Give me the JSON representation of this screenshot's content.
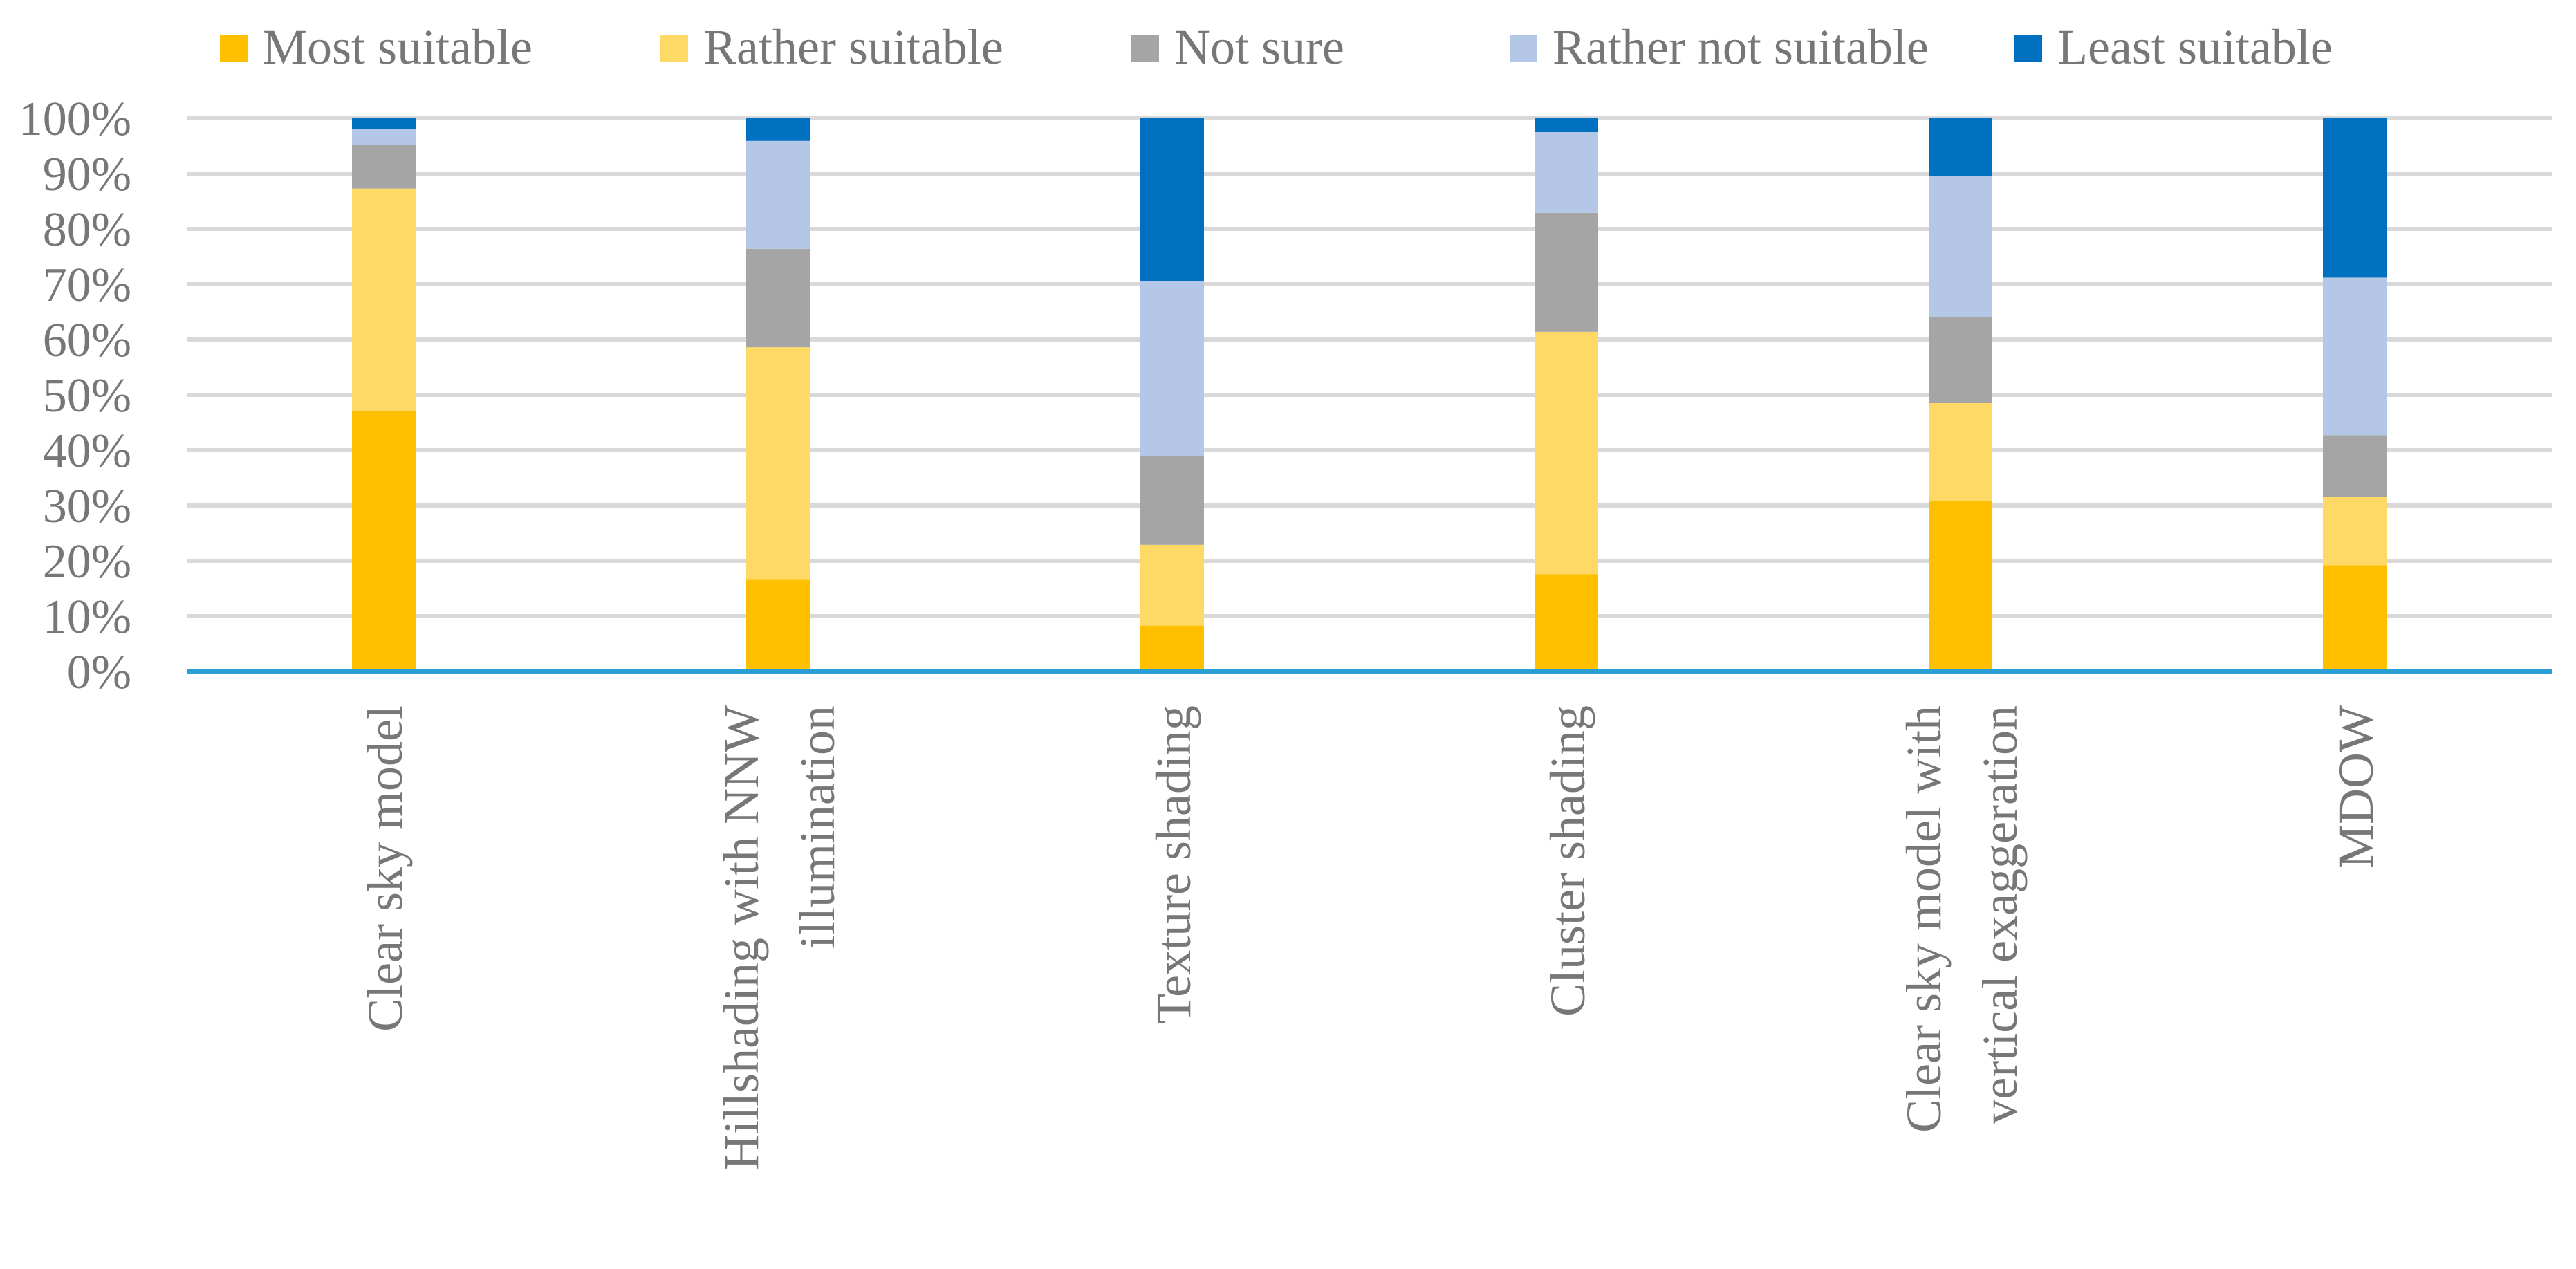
{
  "chart_data": {
    "type": "bar",
    "stacked": true,
    "percent": true,
    "title": "",
    "xlabel": "",
    "ylabel": "",
    "ylim": [
      0,
      100
    ],
    "yticks": [
      "0%",
      "10%",
      "20%",
      "30%",
      "40%",
      "50%",
      "60%",
      "70%",
      "80%",
      "90%",
      "100%"
    ],
    "grid": true,
    "legend_position": "top",
    "categories": [
      [
        "Clear sky model"
      ],
      [
        "Hillshading with NNW",
        "illumination"
      ],
      [
        "Texture shading"
      ],
      [
        "Cluster shading"
      ],
      [
        "Clear sky model with",
        "vertical exaggeration"
      ],
      [
        "MDOW"
      ]
    ],
    "series": [
      {
        "name": "Most suitable",
        "color": "#FFC000",
        "values": [
          47.1,
          16.7,
          8.3,
          17.6,
          30.8,
          19.2
        ]
      },
      {
        "name": "Rather suitable",
        "color": "#FFD966",
        "values": [
          40.2,
          41.9,
          14.6,
          43.8,
          17.7,
          12.4
        ]
      },
      {
        "name": "Not sure",
        "color": "#A5A5A5",
        "values": [
          7.9,
          17.8,
          16.1,
          21.5,
          15.5,
          11.1
        ]
      },
      {
        "name": "Rather not suitable",
        "color": "#B4C7E7",
        "values": [
          2.9,
          19.5,
          31.6,
          14.6,
          25.6,
          28.5
        ]
      },
      {
        "name": "Least suitable",
        "color": "#0070C0",
        "values": [
          1.9,
          4.1,
          29.4,
          2.5,
          10.4,
          28.8
        ]
      }
    ]
  }
}
